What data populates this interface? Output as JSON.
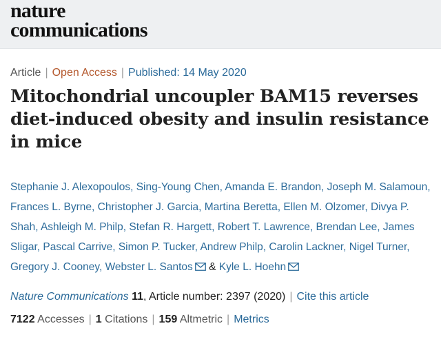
{
  "header": {
    "logo_line1": "nature",
    "logo_line2": "communications"
  },
  "article_meta": {
    "type": "Article",
    "access": "Open Access",
    "published": "Published: 14 May 2020"
  },
  "title": "Mitochondrial uncoupler BAM15 reverses diet-induced obesity and insulin resistance in mice",
  "authors": [
    "Stephanie J. Alexopoulos",
    "Sing-Young Chen",
    "Amanda E. Brandon",
    "Joseph M. Salamoun",
    "Frances L. Byrne",
    "Christopher J. Garcia",
    "Martina Beretta",
    "Ellen M. Olzomer",
    "Divya P. Shah",
    "Ashleigh M. Philp",
    "Stefan R. Hargett",
    "Robert T. Lawrence",
    "Brendan Lee",
    "James Sligar",
    "Pascal Carrive",
    "Simon P. Tucker",
    "Andrew Philp",
    "Carolin Lackner",
    "Nigel Turner",
    "Gregory J. Cooney",
    "Webster L. Santos",
    "Kyle L. Hoehn"
  ],
  "author_conjunction": "&",
  "citation": {
    "journal": "Nature Communications",
    "volume": "11",
    "article_number": ", Article number: 2397 (2020)",
    "cite_link": "Cite this article"
  },
  "metrics": {
    "accesses_count": "7122",
    "accesses_label": "Accesses",
    "citations_count": "1",
    "citations_label": "Citations",
    "altmetric_count": "159",
    "altmetric_label": "Altmetric",
    "metrics_link": "Metrics"
  },
  "colors": {
    "link": "#2c6b9a",
    "open_access": "#b4582d",
    "masthead_bg": "#eef0f2"
  },
  "icons": {
    "mail": "mail-icon"
  }
}
